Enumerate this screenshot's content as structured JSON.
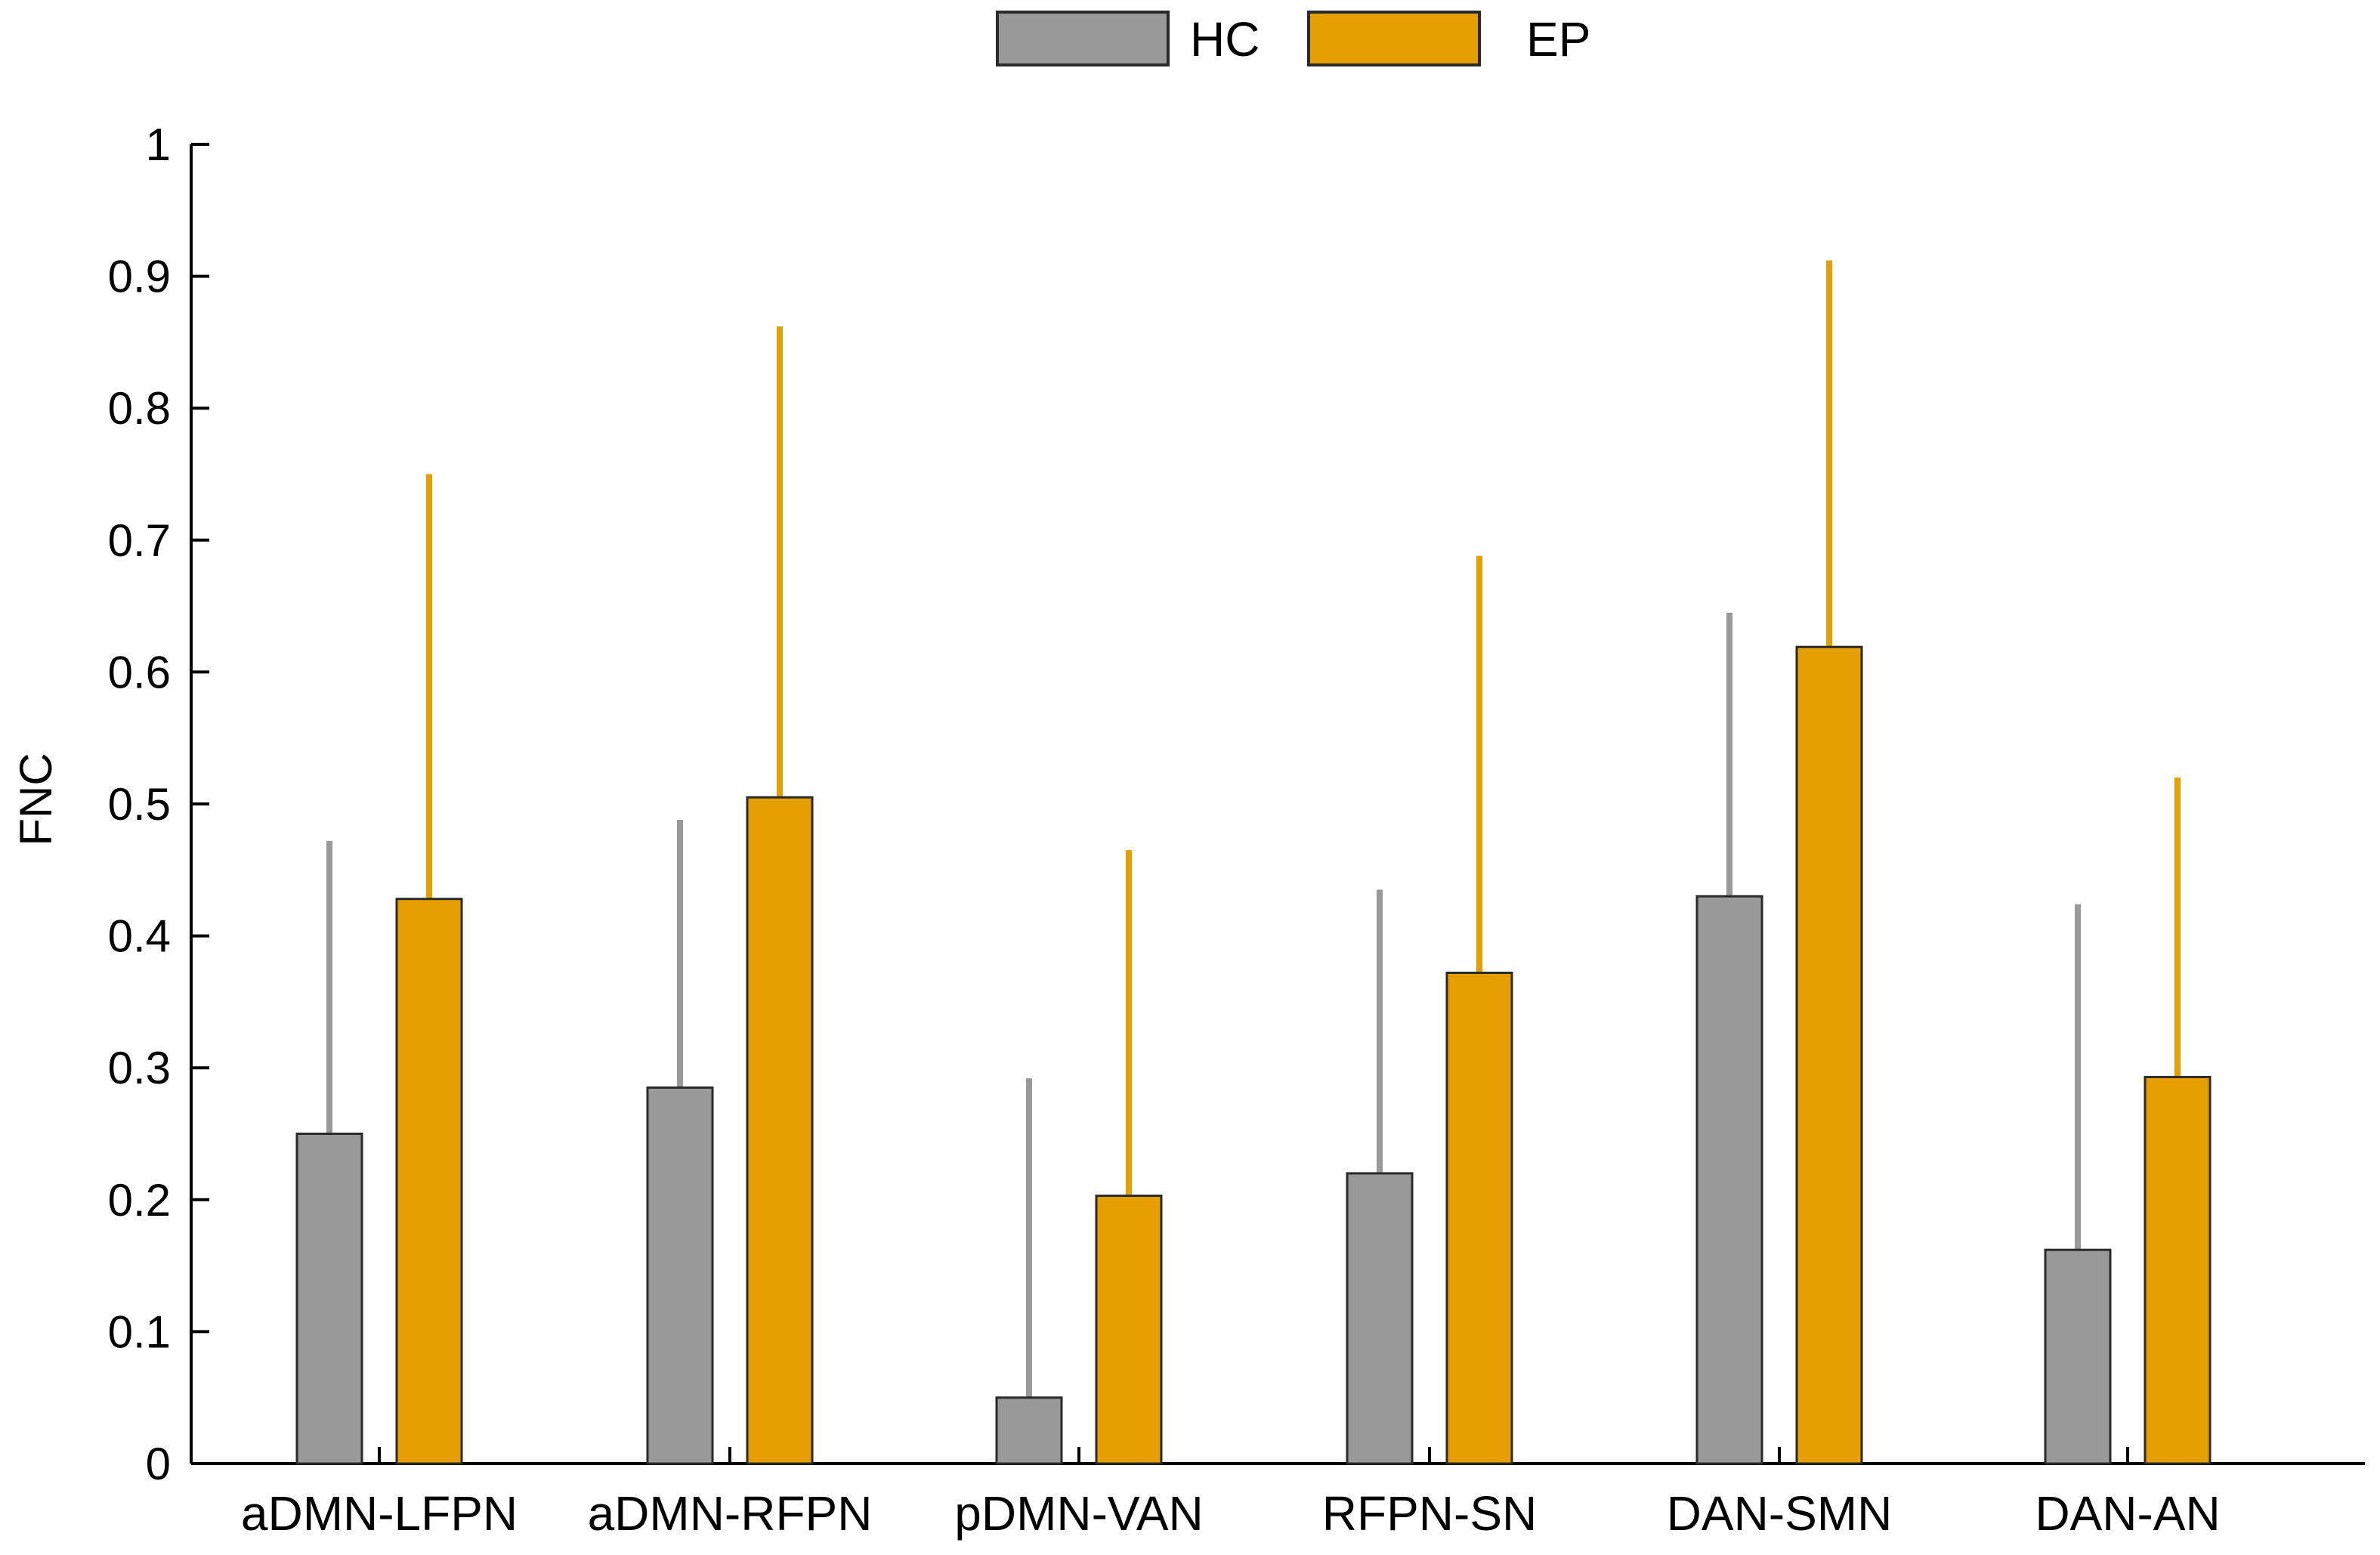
{
  "chart_data": {
    "type": "bar",
    "title": "",
    "xlabel": "",
    "ylabel": "FNC",
    "ylim": [
      0,
      1
    ],
    "yticks": [
      "0",
      "0.1",
      "0.2",
      "0.3",
      "0.4",
      "0.5",
      "0.6",
      "0.7",
      "0.8",
      "0.9",
      "1"
    ],
    "grid": false,
    "legend_position": "top-center",
    "categories": [
      "aDMN-LFPN",
      "aDMN-RFPN",
      "pDMN-VAN",
      "RFPN-SN",
      "DAN-SMN",
      "DAN-AN"
    ],
    "series": [
      {
        "name": "HC",
        "color": "#999999",
        "values": [
          0.25,
          0.285,
          0.05,
          0.22,
          0.43,
          0.162
        ],
        "error_upper": [
          0.472,
          0.488,
          0.292,
          0.435,
          0.645,
          0.424
        ]
      },
      {
        "name": "EP",
        "color": "#E69F00",
        "values": [
          0.428,
          0.505,
          0.203,
          0.372,
          0.619,
          0.293
        ],
        "error_upper": [
          0.75,
          0.862,
          0.465,
          0.688,
          0.912,
          0.52
        ]
      }
    ]
  }
}
